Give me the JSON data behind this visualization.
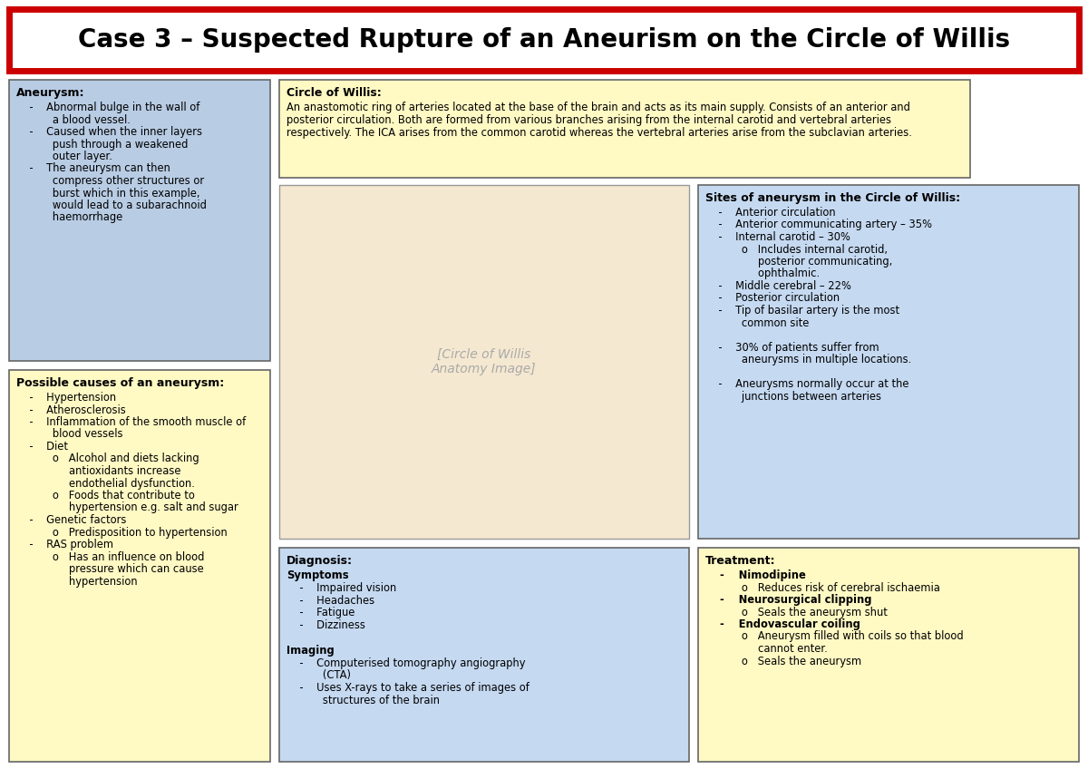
{
  "title": "Case 3 – Suspected Rupture of an Aneurism on the Circle of Willis",
  "bg_color": "#ffffff",
  "title_border": "#cc0000",
  "panel_yellow": "#fff9c4",
  "panel_blue_light": "#b8cce4",
  "panel_blue_med": "#c5d9f1",
  "aneurysm_title": "Aneurysm:",
  "aneurysm_lines": [
    [
      "normal",
      "    -    Abnormal bulge in the wall of"
    ],
    [
      "normal",
      "           a blood vessel."
    ],
    [
      "normal",
      "    -    Caused when the inner layers"
    ],
    [
      "normal",
      "           push through a weakened"
    ],
    [
      "normal",
      "           outer layer."
    ],
    [
      "normal",
      "    -    The aneurysm can then"
    ],
    [
      "normal",
      "           compress other structures or"
    ],
    [
      "normal",
      "           burst which in this example,"
    ],
    [
      "normal",
      "           would lead to a subarachnoid"
    ],
    [
      "normal",
      "           haemorrhage"
    ]
  ],
  "causes_title": "Possible causes of an aneurysm:",
  "causes_lines": [
    [
      "normal",
      "    -    Hypertension"
    ],
    [
      "normal",
      "    -    Atherosclerosis"
    ],
    [
      "normal",
      "    -    Inflammation of the smooth muscle of"
    ],
    [
      "normal",
      "           blood vessels"
    ],
    [
      "normal",
      "    -    Diet"
    ],
    [
      "normal",
      "           o   Alcohol and diets lacking"
    ],
    [
      "normal",
      "                antioxidants increase"
    ],
    [
      "normal",
      "                endothelial dysfunction."
    ],
    [
      "normal",
      "           o   Foods that contribute to"
    ],
    [
      "normal",
      "                hypertension e.g. salt and sugar"
    ],
    [
      "normal",
      "    -    Genetic factors"
    ],
    [
      "normal",
      "           o   Predisposition to hypertension"
    ],
    [
      "normal",
      "    -    RAS problem"
    ],
    [
      "normal",
      "           o   Has an influence on blood"
    ],
    [
      "normal",
      "                pressure which can cause"
    ],
    [
      "normal",
      "                hypertension"
    ]
  ],
  "circle_title": "Circle of Willis:",
  "circle_lines": [
    [
      "normal",
      "An anastomotic ring of arteries located at the base of the brain and acts as its main supply. Consists of an anterior and"
    ],
    [
      "normal",
      "posterior circulation. Both are formed from various branches arising from the internal carotid and vertebral arteries"
    ],
    [
      "normal",
      "respectively. The ICA arises from the common carotid whereas the vertebral arteries arise from the subclavian arteries."
    ]
  ],
  "sites_title": "Sites of aneurysm in the Circle of Willis:",
  "sites_lines": [
    [
      "normal",
      "    -    Anterior circulation"
    ],
    [
      "normal",
      "    -    Anterior communicating artery – 35%"
    ],
    [
      "normal",
      "    -    Internal carotid – 30%"
    ],
    [
      "normal",
      "           o   Includes internal carotid,"
    ],
    [
      "normal",
      "                posterior communicating,"
    ],
    [
      "normal",
      "                ophthalmic."
    ],
    [
      "normal",
      "    -    Middle cerebral – 22%"
    ],
    [
      "normal",
      "    -    Posterior circulation"
    ],
    [
      "normal",
      "    -    Tip of basilar artery is the most"
    ],
    [
      "normal",
      "           common site"
    ],
    [
      "normal",
      ""
    ],
    [
      "normal",
      "    -    30% of patients suffer from"
    ],
    [
      "normal",
      "           aneurysms in multiple locations."
    ],
    [
      "normal",
      ""
    ],
    [
      "normal",
      "    -    Aneurysms normally occur at the"
    ],
    [
      "normal",
      "           junctions between arteries"
    ]
  ],
  "diagnosis_title": "Diagnosis:",
  "diagnosis_lines": [
    [
      "bold",
      "Symptoms"
    ],
    [
      "normal",
      "    -    Impaired vision"
    ],
    [
      "normal",
      "    -    Headaches"
    ],
    [
      "normal",
      "    -    Fatigue"
    ],
    [
      "normal",
      "    -    Dizziness"
    ],
    [
      "normal",
      ""
    ],
    [
      "bold",
      "Imaging"
    ],
    [
      "normal",
      "    -    Computerised tomography angiography"
    ],
    [
      "normal",
      "           (CTA)"
    ],
    [
      "normal",
      "    -    Uses X-rays to take a series of images of"
    ],
    [
      "normal",
      "           structures of the brain"
    ]
  ],
  "treatment_title": "Treatment:",
  "treatment_lines": [
    [
      "normal",
      "    -    Nimodipine"
    ],
    [
      "bold_sub",
      "           o   Reduces risk of cerebral ischaemia"
    ],
    [
      "normal",
      "    -    Neurosurgical clipping"
    ],
    [
      "bold_sub",
      "           o   Seals the aneurysm shut"
    ],
    [
      "normal",
      "    -    Endovascular coiling"
    ],
    [
      "bold_sub",
      "           o   Aneurysm filled with coils so that blood"
    ],
    [
      "bold_sub",
      "                cannot enter."
    ],
    [
      "bold_sub",
      "           o   Seals the aneurysm"
    ]
  ]
}
